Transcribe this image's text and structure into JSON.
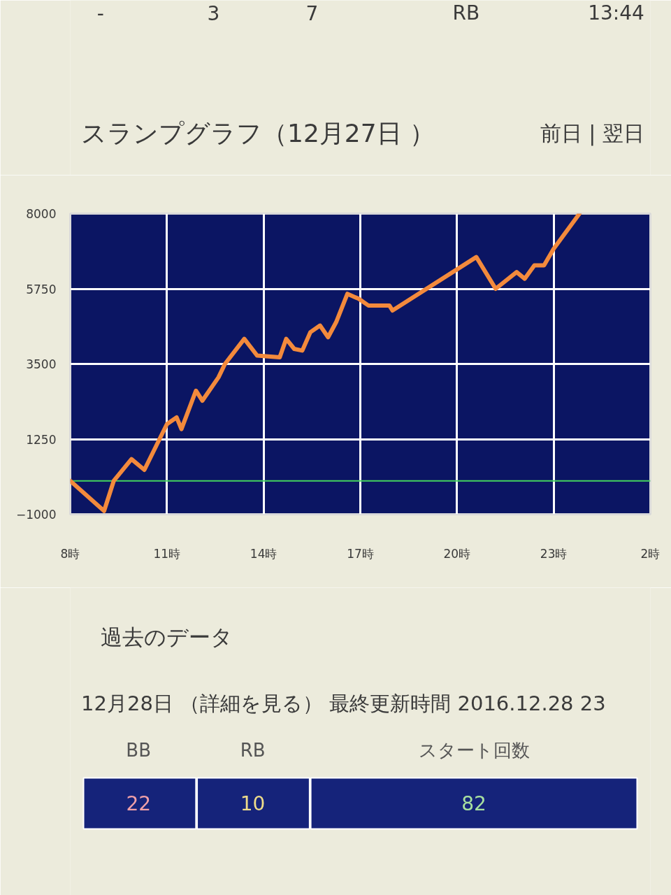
{
  "chart_data": {
    "type": "line",
    "title": "スランプグラフ（12月27日 ）",
    "x": [
      "2016-12-27T08:00",
      "2016-12-27T09:03",
      "2016-12-27T09:21",
      "2016-12-27T09:54",
      "2016-12-27T10:18",
      "2016-12-27T11:00",
      "2016-12-27T11:18",
      "2016-12-27T11:27",
      "2016-12-27T11:54",
      "2016-12-27T12:06",
      "2016-12-27T12:36",
      "2016-12-27T12:48",
      "2016-12-27T13:24",
      "2016-12-27T13:48",
      "2016-12-27T14:30",
      "2016-12-27T14:42",
      "2016-12-27T14:57",
      "2016-12-27T15:12",
      "2016-12-27T15:27",
      "2016-12-27T15:45",
      "2016-12-27T16:00",
      "2016-12-27T16:15",
      "2016-12-27T16:36",
      "2016-12-27T16:57",
      "2016-12-27T17:15",
      "2016-12-27T17:54",
      "2016-12-27T18:00",
      "2016-12-27T20:36",
      "2016-12-27T21:12",
      "2016-12-27T21:51",
      "2016-12-27T22:06",
      "2016-12-27T22:24",
      "2016-12-27T22:42",
      "2016-12-27T23:00",
      "2016-12-27T23:48"
    ],
    "values": [
      0,
      -900,
      0,
      650,
      330,
      1700,
      1900,
      1550,
      2700,
      2400,
      3100,
      3500,
      4250,
      3750,
      3700,
      4250,
      3950,
      3900,
      4450,
      4650,
      4300,
      4750,
      5600,
      5450,
      5250,
      5250,
      5100,
      6700,
      5750,
      6250,
      6050,
      6450,
      6450,
      6950,
      8000
    ],
    "color": "#f38a3c",
    "line_style": "solid",
    "xlim": [
      "2016-12-27T08:00",
      "2016-12-28T02:00"
    ],
    "xticks": [
      {
        "value": "2016-12-27T08:00",
        "label": "8時"
      },
      {
        "value": "2016-12-27T11:00",
        "label": "11時"
      },
      {
        "value": "2016-12-27T14:00",
        "label": "14時"
      },
      {
        "value": "2016-12-27T17:00",
        "label": "17時"
      },
      {
        "value": "2016-12-27T20:00",
        "label": "20時"
      },
      {
        "value": "2016-12-27T23:00",
        "label": "23時"
      },
      {
        "value": "2016-12-28T02:00",
        "label": "2時"
      }
    ],
    "ylim": [
      -1000,
      8000
    ],
    "yticks": [
      -1000,
      1250,
      3500,
      5750,
      8000
    ],
    "grid": true,
    "ref_lines": [
      {
        "axis": "y",
        "value": 0,
        "color": "#43d45e"
      }
    ],
    "annotations": [
      "-",
      "3",
      "7",
      "RB",
      "13:44",
      "前日 | 翌日",
      "過去のデータ",
      "12月28日 （詳細を見る） 最終更新時間 2016.12.28 23",
      "BB",
      "RB",
      "スタート回数",
      "22",
      "10",
      "82"
    ]
  }
}
